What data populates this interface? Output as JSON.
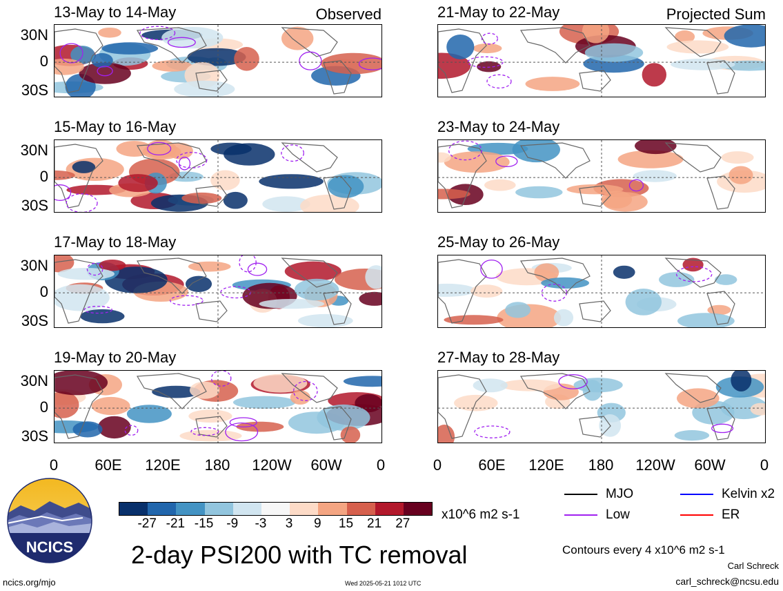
{
  "panels": {
    "left": [
      {
        "title": "13-May to 14-May",
        "tag": "Observed"
      },
      {
        "title": "15-May to 16-May",
        "tag": ""
      },
      {
        "title": "17-May to 18-May",
        "tag": ""
      },
      {
        "title": "19-May to 20-May",
        "tag": ""
      }
    ],
    "right": [
      {
        "title": "21-May to 22-May",
        "tag": "Projected Sum"
      },
      {
        "title": "23-May to 24-May",
        "tag": ""
      },
      {
        "title": "25-May to 26-May",
        "tag": ""
      },
      {
        "title": "27-May to 28-May",
        "tag": ""
      }
    ]
  },
  "lat_labels": [
    "30N",
    "0",
    "30S"
  ],
  "lon_labels": [
    "0",
    "60E",
    "120E",
    "180",
    "120W",
    "60W",
    "0"
  ],
  "colorbar": {
    "colors": [
      "#08306b",
      "#2166ac",
      "#4393c3",
      "#92c5de",
      "#d1e5f0",
      "#f7f7f7",
      "#fddbc7",
      "#f4a582",
      "#d6604d",
      "#b2182b",
      "#67001f"
    ],
    "ticks": [
      "-27",
      "-21",
      "-15",
      "-9",
      "-3",
      "3",
      "9",
      "15",
      "21",
      "27"
    ],
    "units": "x10^6 m2 s-1"
  },
  "title": "2-day PSI200 with TC removal",
  "legend": {
    "items": [
      {
        "label": "MJO",
        "color": "#000000"
      },
      {
        "label": "Kelvin x2",
        "color": "#0000ff"
      },
      {
        "label": "Low",
        "color": "#a020f0"
      },
      {
        "label": "ER",
        "color": "#ff0000"
      }
    ],
    "contours_note": "Contours every 4 x10^6 m2 s-1"
  },
  "logo": {
    "text": "NCICS"
  },
  "footer": {
    "site": "ncics.org/mjo",
    "timestamp": "Wed 2025-05-21 1012 UTC",
    "author": "Carl Schreck",
    "email": "carl_schreck@ncsu.edu"
  }
}
